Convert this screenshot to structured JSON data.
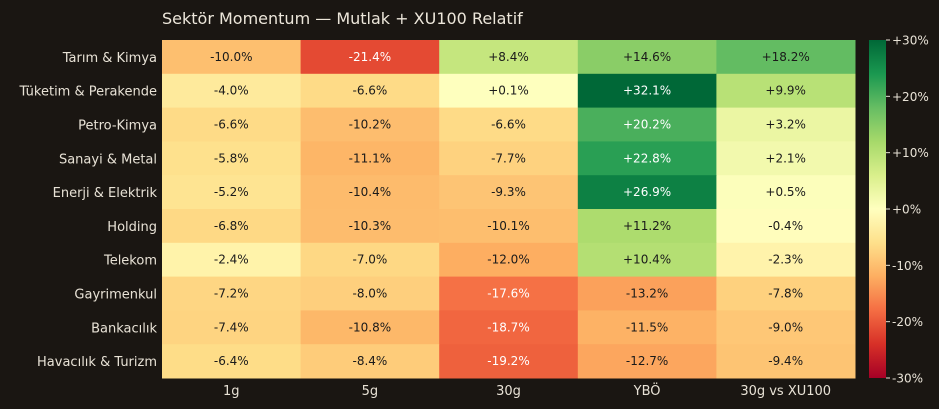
{
  "chart_data": {
    "type": "heatmap",
    "title": "Sektör Momentum — Mutlak + XU100 Relatif",
    "rows": [
      "Tarım & Kimya",
      "Tüketim & Perakende",
      "Petro-Kimya",
      "Sanayi & Metal",
      "Enerji & Elektrik",
      "Holding",
      "Telekom",
      "Gayrimenkul",
      "Bankacılık",
      "Havacılık & Turizm"
    ],
    "columns": [
      "1g",
      "5g",
      "30g",
      "YBÖ",
      "30g vs XU100"
    ],
    "values": [
      [
        -10.0,
        -21.4,
        8.4,
        14.6,
        18.2
      ],
      [
        -4.0,
        -6.6,
        0.1,
        32.1,
        9.9
      ],
      [
        -6.6,
        -10.2,
        -6.6,
        20.2,
        3.2
      ],
      [
        -5.8,
        -11.1,
        -7.7,
        22.8,
        2.1
      ],
      [
        -5.2,
        -10.4,
        -9.3,
        26.9,
        0.5
      ],
      [
        -6.8,
        -10.3,
        -10.1,
        11.2,
        -0.4
      ],
      [
        -2.4,
        -7.0,
        -12.0,
        10.4,
        -2.3
      ],
      [
        -7.2,
        -8.0,
        -17.6,
        -13.2,
        -7.8
      ],
      [
        -7.4,
        -10.8,
        -18.7,
        -11.5,
        -9.0
      ],
      [
        -6.4,
        -8.4,
        -19.2,
        -12.7,
        -9.4
      ]
    ],
    "cell_labels": [
      [
        "-10.0%",
        "-21.4%",
        "+8.4%",
        "+14.6%",
        "+18.2%"
      ],
      [
        "-4.0%",
        "-6.6%",
        "+0.1%",
        "+32.1%",
        "+9.9%"
      ],
      [
        "-6.6%",
        "-10.2%",
        "-6.6%",
        "+20.2%",
        "+3.2%"
      ],
      [
        "-5.8%",
        "-11.1%",
        "-7.7%",
        "+22.8%",
        "+2.1%"
      ],
      [
        "-5.2%",
        "-10.4%",
        "-9.3%",
        "+26.9%",
        "+0.5%"
      ],
      [
        "-6.8%",
        "-10.3%",
        "-10.1%",
        "+11.2%",
        "-0.4%"
      ],
      [
        "-2.4%",
        "-7.0%",
        "-12.0%",
        "+10.4%",
        "-2.3%"
      ],
      [
        "-7.2%",
        "-8.0%",
        "-17.6%",
        "-13.2%",
        "-7.8%"
      ],
      [
        "-7.4%",
        "-10.8%",
        "-18.7%",
        "-11.5%",
        "-9.0%"
      ],
      [
        "-6.4%",
        "-8.4%",
        "-19.2%",
        "-12.7%",
        "-9.4%"
      ]
    ],
    "color_scale": {
      "colormap": "RdYlGn",
      "range": [
        -30,
        30
      ],
      "ticks": [
        30,
        20,
        10,
        0,
        -10,
        -20,
        -30
      ],
      "tick_labels": [
        "+30%",
        "+20%",
        "+10%",
        "+0%",
        "-10%",
        "-20%",
        "-30%"
      ]
    },
    "colors": {
      "background": "#1a1612",
      "text_light": "#e8e2d6"
    }
  }
}
